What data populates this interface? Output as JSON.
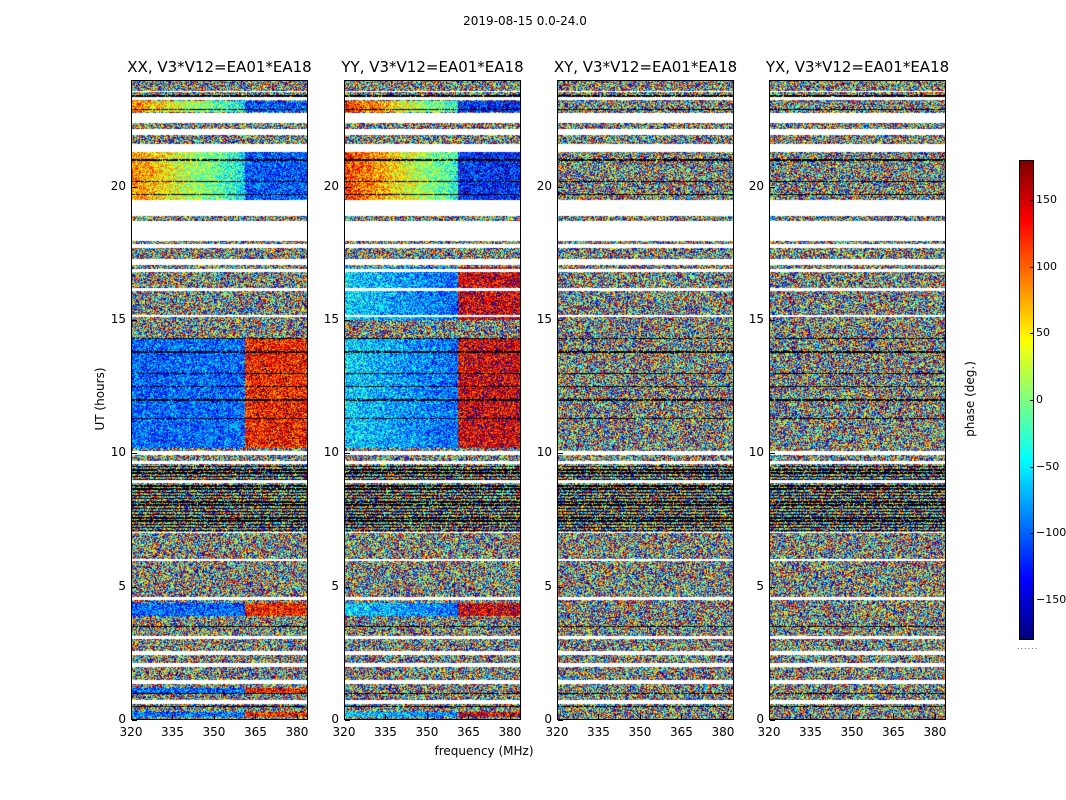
{
  "figure": {
    "suptitle": "2019-08-15 0.0-24.0",
    "xlabel": "frequency (MHz)",
    "ylabel": "UT (hours)",
    "colorbar": {
      "label": "phase (deg.)",
      "ticks": [
        -150,
        -100,
        -50,
        0,
        50,
        100,
        150
      ],
      "tick_labels": [
        "−150",
        "−100",
        "−50",
        "0",
        "50",
        "100",
        "150"
      ],
      "range": [
        -180,
        180
      ],
      "colormap": "jet",
      "footer": "......"
    }
  },
  "chart_data": [
    {
      "type": "heatmap",
      "title": "XX, V3*V12=EA01*EA18",
      "polarization": "XX",
      "xlabel": "frequency (MHz)",
      "ylabel": "UT (hours)",
      "xlim": [
        320,
        384
      ],
      "ylim": [
        0,
        24
      ],
      "xticks": [
        320,
        335,
        350,
        365,
        380
      ],
      "yticks": [
        0,
        5,
        10,
        15,
        20
      ],
      "value_label": "phase (deg.)",
      "vrange": [
        -180,
        180
      ],
      "coherent_intervals_hours": [
        [
          0.1,
          0.3
        ],
        [
          1.0,
          1.2
        ],
        [
          3.9,
          4.4
        ],
        [
          10.2,
          14.3
        ],
        [
          19.5,
          21.3
        ],
        [
          22.8,
          23.2
        ]
      ]
    },
    {
      "type": "heatmap",
      "title": "YY, V3*V12=EA01*EA18",
      "polarization": "YY",
      "xlabel": "frequency (MHz)",
      "ylabel": "UT (hours)",
      "xlim": [
        320,
        384
      ],
      "ylim": [
        0,
        24
      ],
      "xticks": [
        320,
        335,
        350,
        365,
        380
      ],
      "yticks": [
        0,
        5,
        10,
        15,
        20
      ],
      "value_label": "phase (deg.)",
      "vrange": [
        -180,
        180
      ],
      "coherent_intervals_hours": [
        [
          0.1,
          0.3
        ],
        [
          3.9,
          4.4
        ],
        [
          10.2,
          14.3
        ],
        [
          15.0,
          17.0
        ],
        [
          19.5,
          21.3
        ],
        [
          22.8,
          23.2
        ]
      ]
    },
    {
      "type": "heatmap",
      "title": "XY, V3*V12=EA01*EA18",
      "polarization": "XY",
      "xlabel": "frequency (MHz)",
      "ylabel": "UT (hours)",
      "xlim": [
        320,
        384
      ],
      "ylim": [
        0,
        24
      ],
      "xticks": [
        320,
        335,
        350,
        365,
        380
      ],
      "yticks": [
        0,
        5,
        10,
        15,
        20
      ],
      "value_label": "phase (deg.)",
      "vrange": [
        -180,
        180
      ],
      "coherent_intervals_hours": []
    },
    {
      "type": "heatmap",
      "title": "YX, V3*V12=EA01*EA18",
      "polarization": "YX",
      "xlabel": "frequency (MHz)",
      "ylabel": "UT (hours)",
      "xlim": [
        320,
        384
      ],
      "ylim": [
        0,
        24
      ],
      "xticks": [
        320,
        335,
        350,
        365,
        380
      ],
      "yticks": [
        0,
        5,
        10,
        15,
        20
      ],
      "value_label": "phase (deg.)",
      "vrange": [
        -180,
        180
      ],
      "coherent_intervals_hours": []
    }
  ]
}
